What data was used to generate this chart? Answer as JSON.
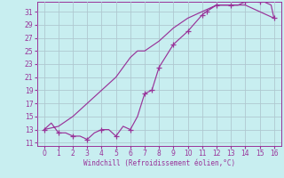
{
  "xlabel": "Windchill (Refroidissement éolien,°C)",
  "bg_color": "#c8eef0",
  "grid_color": "#b0c8d0",
  "line_color": "#993399",
  "xlim": [
    -0.5,
    16.5
  ],
  "ylim": [
    10.5,
    32.5
  ],
  "xticks": [
    0,
    1,
    2,
    3,
    4,
    5,
    6,
    7,
    8,
    9,
    10,
    11,
    12,
    13,
    14,
    15,
    16
  ],
  "yticks": [
    11,
    13,
    15,
    17,
    19,
    21,
    23,
    25,
    27,
    29,
    31
  ],
  "loop_x": [
    0,
    0.5,
    1,
    1.5,
    2,
    2.5,
    3,
    3.5,
    4,
    4.5,
    5,
    5.5,
    6,
    6.5,
    7,
    7.5,
    8,
    9,
    10,
    11,
    11.3,
    12,
    12.5,
    13,
    13.5,
    14,
    14.5,
    15,
    15.3,
    15.8,
    16,
    15.5,
    15,
    14,
    13,
    12,
    11,
    10,
    9,
    8,
    7,
    6.5,
    6,
    5,
    4,
    3,
    2,
    1,
    0
  ],
  "loop_y": [
    13,
    14,
    12.5,
    12.5,
    12,
    12,
    11.5,
    12.5,
    13,
    13,
    12,
    13.5,
    13,
    15,
    18.5,
    19,
    22.5,
    26,
    28,
    30.5,
    31,
    32,
    32,
    32,
    32,
    32.5,
    32.5,
    32.5,
    32.5,
    32,
    30,
    30.5,
    31,
    32,
    32,
    32,
    31,
    30,
    28.5,
    26.5,
    25,
    25,
    24,
    21,
    19,
    17,
    15,
    13.5,
    13
  ],
  "marker_x": [
    0,
    1,
    2,
    3,
    4,
    5,
    6,
    7,
    7.5,
    8,
    9,
    10,
    11,
    11.3,
    12,
    13,
    14,
    15,
    16
  ],
  "marker_y": [
    13,
    12.5,
    12,
    11.5,
    13,
    12,
    13,
    18.5,
    19,
    22.5,
    26,
    28,
    30.5,
    31,
    32,
    32,
    32.5,
    32.5,
    30
  ]
}
